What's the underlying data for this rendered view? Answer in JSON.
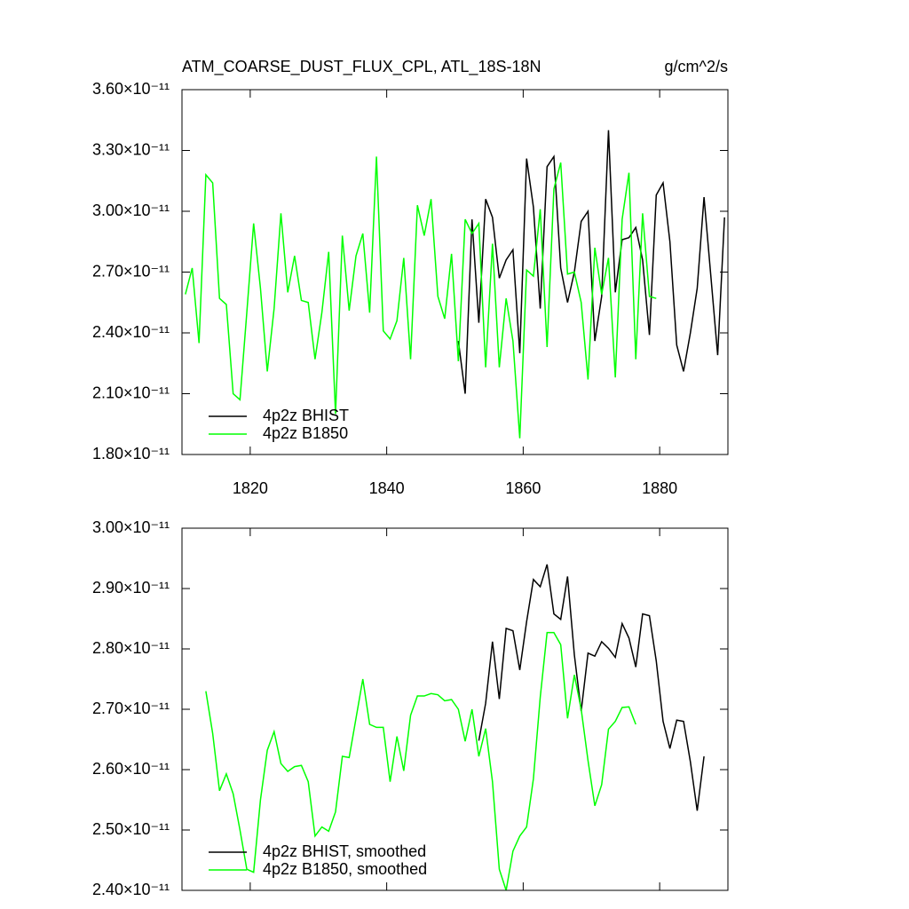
{
  "chart_data": [
    {
      "type": "line",
      "title": "ATM_COARSE_DUST_FLUX_CPL, ATL_18S-18N",
      "units": "g/cm^2/s",
      "xlim": [
        1810,
        1890
      ],
      "xticks": [
        1820,
        1840,
        1860,
        1880
      ],
      "ylim": [
        1.8e-11,
        3.6e-11
      ],
      "yticks": [
        {
          "value": 1.8e-11,
          "label": "1.80×10⁻¹¹"
        },
        {
          "value": 2.1e-11,
          "label": "2.10×10⁻¹¹"
        },
        {
          "value": 2.4e-11,
          "label": "2.40×10⁻¹¹"
        },
        {
          "value": 2.7e-11,
          "label": "2.70×10⁻¹¹"
        },
        {
          "value": 3e-11,
          "label": "3.00×10⁻¹¹"
        },
        {
          "value": 3.3e-11,
          "label": "3.30×10⁻¹¹"
        },
        {
          "value": 3.6e-11,
          "label": "3.60×10⁻¹¹"
        }
      ],
      "legend": "lower left",
      "series": [
        {
          "name": "4p2z BHIST",
          "color": "#000000",
          "x": [
            1850.5,
            1851.5,
            1852.5,
            1853.5,
            1854.5,
            1855.5,
            1856.5,
            1857.5,
            1858.5,
            1859.5,
            1860.5,
            1861.5,
            1862.5,
            1863.5,
            1864.5,
            1865.5,
            1866.5,
            1867.5,
            1868.5,
            1869.5,
            1870.5,
            1871.5,
            1872.5,
            1873.5,
            1874.5,
            1875.5,
            1876.5,
            1877.5,
            1878.5,
            1879.5,
            1880.5,
            1881.5,
            1882.5,
            1883.5,
            1884.5,
            1885.5,
            1886.5,
            1887.5,
            1888.5,
            1889.5
          ],
          "values": [
            2.36e-11,
            2.1e-11,
            2.96e-11,
            2.45e-11,
            3.06e-11,
            2.97e-11,
            2.67e-11,
            2.76e-11,
            2.81e-11,
            2.3e-11,
            3.26e-11,
            3.02e-11,
            2.52e-11,
            3.22e-11,
            3.27e-11,
            2.72e-11,
            2.55e-11,
            2.7e-11,
            2.95e-11,
            3e-11,
            2.36e-11,
            2.58e-11,
            3.4e-11,
            2.6e-11,
            2.86e-11,
            2.87e-11,
            2.92e-11,
            2.76e-11,
            2.39e-11,
            3.08e-11,
            3.14e-11,
            2.85e-11,
            2.34e-11,
            2.21e-11,
            2.4e-11,
            2.62e-11,
            3.07e-11,
            2.68e-11,
            2.29e-11,
            2.97e-11
          ]
        },
        {
          "name": "4p2z B1850",
          "color": "#00ff00",
          "x": [
            1810.5,
            1811.5,
            1812.5,
            1813.5,
            1814.5,
            1815.5,
            1816.5,
            1817.5,
            1818.5,
            1819.5,
            1820.5,
            1821.5,
            1822.5,
            1823.5,
            1824.5,
            1825.5,
            1826.5,
            1827.5,
            1828.5,
            1829.5,
            1830.5,
            1831.5,
            1832.5,
            1833.5,
            1834.5,
            1835.5,
            1836.5,
            1837.5,
            1838.5,
            1839.5,
            1840.5,
            1841.5,
            1842.5,
            1843.5,
            1844.5,
            1845.5,
            1846.5,
            1847.5,
            1848.5,
            1849.5,
            1850.5,
            1851.5,
            1852.5,
            1853.5,
            1854.5,
            1855.5,
            1856.5,
            1857.5,
            1858.5,
            1859.5,
            1860.5,
            1861.5,
            1862.5,
            1863.5,
            1864.5,
            1865.5,
            1866.5,
            1867.5,
            1868.5,
            1869.5,
            1870.5,
            1871.5,
            1872.5,
            1873.5,
            1874.5,
            1875.5,
            1876.5,
            1877.5,
            1878.5,
            1879.5
          ],
          "values": [
            2.59e-11,
            2.72e-11,
            2.35e-11,
            3.18e-11,
            3.14e-11,
            2.57e-11,
            2.54e-11,
            2.1e-11,
            2.07e-11,
            2.5e-11,
            2.94e-11,
            2.62e-11,
            2.21e-11,
            2.52e-11,
            2.99e-11,
            2.6e-11,
            2.78e-11,
            2.56e-11,
            2.55e-11,
            2.27e-11,
            2.5e-11,
            2.8e-11,
            2e-11,
            2.88e-11,
            2.51e-11,
            2.78e-11,
            2.89e-11,
            2.5e-11,
            3.27e-11,
            2.41e-11,
            2.37e-11,
            2.46e-11,
            2.77e-11,
            2.27e-11,
            3.03e-11,
            2.88e-11,
            3.06e-11,
            2.58e-11,
            2.47e-11,
            2.79e-11,
            2.26e-11,
            2.96e-11,
            2.89e-11,
            2.94e-11,
            2.23e-11,
            2.84e-11,
            2.23e-11,
            2.57e-11,
            2.36e-11,
            1.88e-11,
            2.71e-11,
            2.68e-11,
            3.01e-11,
            2.33e-11,
            3.11e-11,
            3.24e-11,
            2.69e-11,
            2.7e-11,
            2.55e-11,
            2.17e-11,
            2.82e-11,
            2.59e-11,
            2.77e-11,
            2.18e-11,
            2.96e-11,
            3.19e-11,
            2.27e-11,
            2.99e-11,
            2.58e-11,
            2.57e-11
          ]
        }
      ]
    },
    {
      "type": "line",
      "xlim": [
        1810,
        1890
      ],
      "xticks": [
        1820,
        1840,
        1860,
        1880
      ],
      "ylim": [
        2.4e-11,
        3e-11
      ],
      "yticks": [
        {
          "value": 2.4e-11,
          "label": "2.40×10⁻¹¹"
        },
        {
          "value": 2.5e-11,
          "label": "2.50×10⁻¹¹"
        },
        {
          "value": 2.6e-11,
          "label": "2.60×10⁻¹¹"
        },
        {
          "value": 2.7e-11,
          "label": "2.70×10⁻¹¹"
        },
        {
          "value": 2.8e-11,
          "label": "2.80×10⁻¹¹"
        },
        {
          "value": 2.9e-11,
          "label": "2.90×10⁻¹¹"
        },
        {
          "value": 3e-11,
          "label": "3.00×10⁻¹¹"
        }
      ],
      "legend": "lower left",
      "series": [
        {
          "name": "4p2z BHIST, smoothed",
          "color": "#000000",
          "x": [
            1853.5,
            1854.5,
            1855.5,
            1856.5,
            1857.5,
            1858.5,
            1859.5,
            1860.5,
            1861.5,
            1862.5,
            1863.5,
            1864.5,
            1865.5,
            1866.5,
            1867.5,
            1868.5,
            1869.5,
            1870.5,
            1871.5,
            1872.5,
            1873.5,
            1874.5,
            1875.5,
            1876.5,
            1877.5,
            1878.5,
            1879.5,
            1880.5,
            1881.5,
            1882.5,
            1883.5,
            1884.5,
            1885.5,
            1886.5
          ],
          "values": [
            2.648e-11,
            2.71e-11,
            2.812e-11,
            2.717e-11,
            2.834e-11,
            2.83e-11,
            2.765e-11,
            2.845e-11,
            2.915e-11,
            2.903e-11,
            2.94e-11,
            2.858e-11,
            2.849e-11,
            2.92e-11,
            2.79e-11,
            2.697e-11,
            2.793e-11,
            2.788e-11,
            2.812e-11,
            2.801e-11,
            2.786e-11,
            2.842e-11,
            2.818e-11,
            2.77e-11,
            2.858e-11,
            2.855e-11,
            2.78e-11,
            2.68e-11,
            2.635e-11,
            2.682e-11,
            2.68e-11,
            2.613e-11,
            2.532e-11,
            2.622e-11
          ]
        },
        {
          "name": "4p2z B1850, smoothed",
          "color": "#00ff00",
          "x": [
            1813.5,
            1814.5,
            1815.5,
            1816.5,
            1817.5,
            1818.5,
            1819.5,
            1820.5,
            1821.5,
            1822.5,
            1823.5,
            1824.5,
            1825.5,
            1826.5,
            1827.5,
            1828.5,
            1829.5,
            1830.5,
            1831.5,
            1832.5,
            1833.5,
            1834.5,
            1835.5,
            1836.5,
            1837.5,
            1838.5,
            1839.5,
            1840.5,
            1841.5,
            1842.5,
            1843.5,
            1844.5,
            1845.5,
            1846.5,
            1847.5,
            1848.5,
            1849.5,
            1850.5,
            1851.5,
            1852.5,
            1853.5,
            1854.5,
            1855.5,
            1856.5,
            1857.5,
            1858.5,
            1859.5,
            1860.5,
            1861.5,
            1862.5,
            1863.5,
            1864.5,
            1865.5,
            1866.5,
            1867.5,
            1868.5,
            1869.5,
            1870.5,
            1871.5,
            1872.5,
            1873.5,
            1874.5,
            1875.5,
            1876.5
          ],
          "values": [
            2.73e-11,
            2.66e-11,
            2.565e-11,
            2.593e-11,
            2.56e-11,
            2.5e-11,
            2.435e-11,
            2.43e-11,
            2.55e-11,
            2.632e-11,
            2.663e-11,
            2.61e-11,
            2.597e-11,
            2.605e-11,
            2.607e-11,
            2.58e-11,
            2.49e-11,
            2.505e-11,
            2.498e-11,
            2.53e-11,
            2.622e-11,
            2.62e-11,
            2.685e-11,
            2.75e-11,
            2.675e-11,
            2.67e-11,
            2.67e-11,
            2.58e-11,
            2.655e-11,
            2.598e-11,
            2.69e-11,
            2.722e-11,
            2.722e-11,
            2.726e-11,
            2.724e-11,
            2.714e-11,
            2.716e-11,
            2.7e-11,
            2.647e-11,
            2.7e-11,
            2.622e-11,
            2.668e-11,
            2.58e-11,
            2.435e-11,
            2.4e-11,
            2.465e-11,
            2.49e-11,
            2.505e-11,
            2.585e-11,
            2.72e-11,
            2.827e-11,
            2.827e-11,
            2.807e-11,
            2.685e-11,
            2.757e-11,
            2.7e-11,
            2.615e-11,
            2.54e-11,
            2.575e-11,
            2.667e-11,
            2.68e-11,
            2.703e-11,
            2.704e-11,
            2.675e-11
          ]
        }
      ]
    }
  ]
}
